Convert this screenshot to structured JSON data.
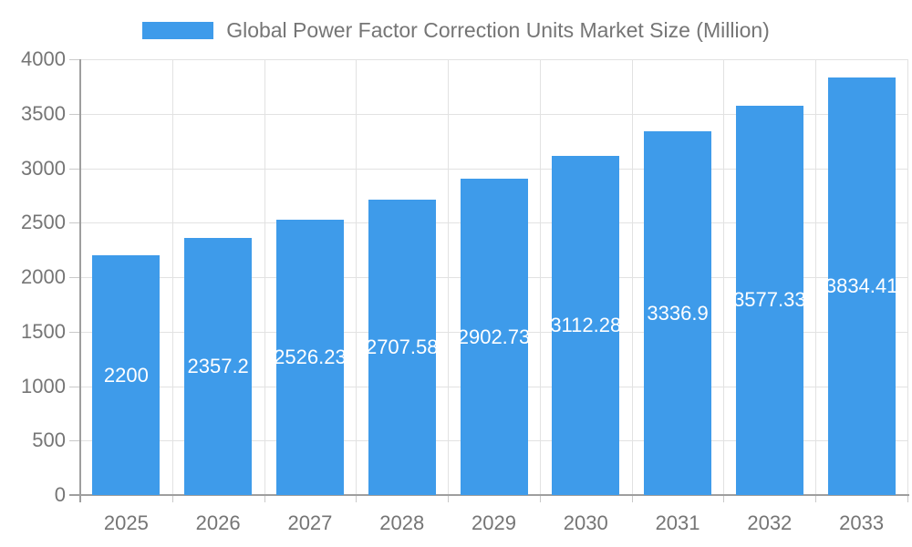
{
  "legend": {
    "label": "Global Power Factor Correction Units Market Size (Million)"
  },
  "chart_data": {
    "type": "bar",
    "title": "Global Power Factor Correction Units Market Size (Million)",
    "categories": [
      "2025",
      "2026",
      "2027",
      "2028",
      "2029",
      "2030",
      "2031",
      "2032",
      "2033"
    ],
    "values": [
      2200,
      2357.2,
      2526.23,
      2707.58,
      2902.73,
      3112.28,
      3336.9,
      3577.33,
      3834.41
    ],
    "bar_labels": [
      "2200",
      "2357.2",
      "2526.23",
      "2707.58",
      "2902.73",
      "3112.28",
      "3336.9",
      "3577.33",
      "3834.41"
    ],
    "xlabel": "",
    "ylabel": "",
    "ylim": [
      0,
      4000
    ],
    "yticks": [
      0,
      500,
      1000,
      1500,
      2000,
      2500,
      3000,
      3500,
      4000
    ],
    "grid": true,
    "legend_position": "top-center",
    "bar_label_position": "inside-center"
  },
  "colors": {
    "bar": "#3E9BEA",
    "bar_label_text": "#ffffff",
    "grid_line": "#e2e2e2",
    "axis_line": "#9e9e9e",
    "tick_mark": "#c9c9c9",
    "tick_text": "#757575",
    "legend_text": "#757575",
    "background": "#ffffff"
  }
}
